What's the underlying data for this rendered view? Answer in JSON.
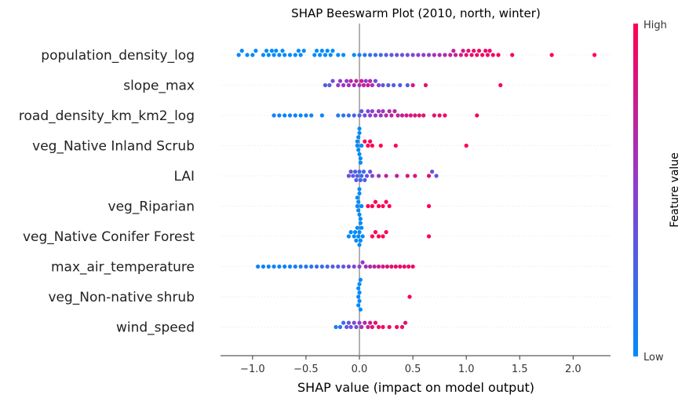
{
  "chart_data": {
    "type": "scatter",
    "subtype": "beeswarm",
    "title": "SHAP Beeswarm Plot (2010, north, winter)",
    "xlabel": "SHAP value (impact on model output)",
    "xlim": [
      -1.3,
      2.35
    ],
    "xticks": [
      -1.0,
      -0.5,
      0.0,
      0.5,
      1.0,
      1.5,
      2.0
    ],
    "xtick_labels": [
      "−1.0",
      "−0.5",
      "0.0",
      "0.5",
      "1.0",
      "1.5",
      "2.0"
    ],
    "features": [
      "population_density_log",
      "slope_max",
      "road_density_km_km2_log",
      "veg_Native Inland Scrub",
      "LAI",
      "veg_Riparian",
      "veg_Native Conifer Forest",
      "max_air_temperature",
      "veg_Non-native shrub",
      "wind_speed"
    ],
    "colorbar": {
      "label": "Feature value",
      "high_label": "High",
      "low_label": "Low",
      "low_color": "#008bfb",
      "high_color": "#ff0052"
    },
    "series": [
      {
        "feature": "population_density_log",
        "points": [
          [
            -1.13,
            0
          ],
          [
            -1.1,
            0
          ],
          [
            -1.05,
            0
          ],
          [
            -1.0,
            0
          ],
          [
            -0.97,
            0
          ],
          [
            -0.9,
            0
          ],
          [
            -0.87,
            0
          ],
          [
            -0.85,
            0
          ],
          [
            -0.82,
            0
          ],
          [
            -0.8,
            0
          ],
          [
            -0.78,
            0
          ],
          [
            -0.75,
            0
          ],
          [
            -0.72,
            0
          ],
          [
            -0.7,
            0
          ],
          [
            -0.65,
            0
          ],
          [
            -0.6,
            0
          ],
          [
            -0.57,
            0
          ],
          [
            -0.55,
            0
          ],
          [
            -0.52,
            0
          ],
          [
            -0.42,
            0
          ],
          [
            -0.4,
            0
          ],
          [
            -0.37,
            0
          ],
          [
            -0.35,
            0
          ],
          [
            -0.32,
            0
          ],
          [
            -0.3,
            0
          ],
          [
            -0.27,
            0
          ],
          [
            -0.25,
            0
          ],
          [
            -0.2,
            0
          ],
          [
            -0.15,
            0
          ],
          [
            -0.05,
            0
          ],
          [
            0.0,
            0.1
          ],
          [
            0.05,
            0.15
          ],
          [
            0.1,
            0.2
          ],
          [
            0.15,
            0.2
          ],
          [
            0.2,
            0.25
          ],
          [
            0.25,
            0.3
          ],
          [
            0.3,
            0.35
          ],
          [
            0.35,
            0.35
          ],
          [
            0.4,
            0.4
          ],
          [
            0.45,
            0.4
          ],
          [
            0.5,
            0.45
          ],
          [
            0.55,
            0.5
          ],
          [
            0.6,
            0.5
          ],
          [
            0.65,
            0.55
          ],
          [
            0.7,
            0.6
          ],
          [
            0.75,
            0.6
          ],
          [
            0.8,
            0.65
          ],
          [
            0.85,
            0.7
          ],
          [
            0.88,
            0.7
          ],
          [
            0.9,
            0.75
          ],
          [
            0.95,
            0.8
          ],
          [
            0.97,
            0.8
          ],
          [
            1.0,
            0.85
          ],
          [
            1.02,
            0.85
          ],
          [
            1.05,
            0.9
          ],
          [
            1.07,
            0.9
          ],
          [
            1.1,
            0.9
          ],
          [
            1.12,
            0.95
          ],
          [
            1.15,
            0.95
          ],
          [
            1.18,
            0.9
          ],
          [
            1.2,
            0.95
          ],
          [
            1.22,
            0.9
          ],
          [
            1.25,
            0.95
          ],
          [
            1.3,
            0.95
          ],
          [
            1.43,
            1.0
          ],
          [
            1.8,
            1.0
          ],
          [
            2.2,
            1.0
          ]
        ]
      },
      {
        "feature": "slope_max",
        "points": [
          [
            -0.32,
            0.3
          ],
          [
            -0.28,
            0.35
          ],
          [
            -0.25,
            0.4
          ],
          [
            -0.2,
            0.5
          ],
          [
            -0.18,
            0.55
          ],
          [
            -0.15,
            0.6
          ],
          [
            -0.12,
            0.5
          ],
          [
            -0.1,
            0.6
          ],
          [
            -0.08,
            0.7
          ],
          [
            -0.05,
            0.6
          ],
          [
            -0.03,
            0.7
          ],
          [
            0.0,
            0.6
          ],
          [
            0.02,
            0.8
          ],
          [
            0.04,
            0.7
          ],
          [
            0.06,
            0.5
          ],
          [
            0.08,
            0.8
          ],
          [
            0.1,
            0.7
          ],
          [
            0.12,
            0.6
          ],
          [
            0.15,
            0.4
          ],
          [
            0.18,
            0.5
          ],
          [
            0.22,
            0.35
          ],
          [
            0.27,
            0.3
          ],
          [
            0.32,
            0.3
          ],
          [
            0.38,
            0.3
          ],
          [
            0.45,
            0.3
          ],
          [
            0.5,
            0.85
          ],
          [
            0.62,
            0.9
          ],
          [
            1.32,
            0.95
          ]
        ]
      },
      {
        "feature": "road_density_km_km2_log",
        "points": [
          [
            -0.8,
            0.05
          ],
          [
            -0.75,
            0.05
          ],
          [
            -0.7,
            0.05
          ],
          [
            -0.65,
            0.05
          ],
          [
            -0.6,
            0.05
          ],
          [
            -0.55,
            0.05
          ],
          [
            -0.5,
            0.05
          ],
          [
            -0.45,
            0.05
          ],
          [
            -0.35,
            0.05
          ],
          [
            -0.2,
            0.1
          ],
          [
            -0.15,
            0.15
          ],
          [
            -0.1,
            0.2
          ],
          [
            -0.05,
            0.25
          ],
          [
            0.0,
            0.3
          ],
          [
            0.02,
            0.35
          ],
          [
            0.05,
            0.4
          ],
          [
            0.08,
            0.45
          ],
          [
            0.1,
            0.5
          ],
          [
            0.12,
            0.5
          ],
          [
            0.15,
            0.55
          ],
          [
            0.18,
            0.55
          ],
          [
            0.2,
            0.6
          ],
          [
            0.22,
            0.6
          ],
          [
            0.25,
            0.65
          ],
          [
            0.28,
            0.65
          ],
          [
            0.3,
            0.7
          ],
          [
            0.33,
            0.7
          ],
          [
            0.36,
            0.75
          ],
          [
            0.4,
            0.75
          ],
          [
            0.44,
            0.8
          ],
          [
            0.48,
            0.8
          ],
          [
            0.52,
            0.85
          ],
          [
            0.56,
            0.85
          ],
          [
            0.6,
            0.85
          ],
          [
            0.7,
            0.9
          ],
          [
            0.75,
            0.9
          ],
          [
            0.8,
            0.9
          ],
          [
            1.1,
            0.95
          ]
        ]
      },
      {
        "feature": "veg_Native Inland Scrub",
        "points": [
          [
            -0.02,
            0.0
          ],
          [
            -0.01,
            0.0
          ],
          [
            0.0,
            0.0
          ],
          [
            0.01,
            0.0
          ],
          [
            -0.02,
            0.0
          ],
          [
            0.0,
            0.0
          ],
          [
            0.01,
            0.0
          ],
          [
            -0.01,
            0.0
          ],
          [
            0.0,
            0.0
          ],
          [
            0.02,
            0.0
          ],
          [
            0.05,
            1.0
          ],
          [
            0.08,
            1.0
          ],
          [
            0.1,
            1.0
          ],
          [
            0.12,
            1.0
          ],
          [
            0.2,
            1.0
          ],
          [
            0.34,
            1.0
          ],
          [
            1.0,
            1.0
          ]
        ]
      },
      {
        "feature": "LAI",
        "points": [
          [
            -0.1,
            0.4
          ],
          [
            -0.08,
            0.35
          ],
          [
            -0.06,
            0.3
          ],
          [
            -0.04,
            0.3
          ],
          [
            -0.02,
            0.25
          ],
          [
            0.0,
            0.25
          ],
          [
            0.02,
            0.2
          ],
          [
            0.04,
            0.2
          ],
          [
            -0.03,
            0.3
          ],
          [
            0.01,
            0.25
          ],
          [
            0.05,
            0.3
          ],
          [
            0.07,
            0.35
          ],
          [
            0.1,
            0.4
          ],
          [
            0.12,
            0.45
          ],
          [
            0.18,
            0.6
          ],
          [
            0.25,
            0.7
          ],
          [
            0.35,
            0.75
          ],
          [
            0.45,
            0.8
          ],
          [
            0.52,
            0.85
          ],
          [
            0.65,
            0.9
          ],
          [
            0.68,
            0.4
          ],
          [
            0.72,
            0.3
          ]
        ]
      },
      {
        "feature": "veg_Riparian",
        "points": [
          [
            -0.02,
            0.0
          ],
          [
            -0.01,
            0.0
          ],
          [
            0.0,
            0.0
          ],
          [
            0.01,
            0.0
          ],
          [
            -0.02,
            0.0
          ],
          [
            0.0,
            0.0
          ],
          [
            0.01,
            0.0
          ],
          [
            -0.01,
            0.0
          ],
          [
            0.0,
            0.0
          ],
          [
            0.02,
            0.0
          ],
          [
            0.08,
            1.0
          ],
          [
            0.12,
            1.0
          ],
          [
            0.15,
            1.0
          ],
          [
            0.18,
            1.0
          ],
          [
            0.22,
            1.0
          ],
          [
            0.25,
            1.0
          ],
          [
            0.28,
            1.0
          ],
          [
            0.65,
            1.0
          ]
        ]
      },
      {
        "feature": "veg_Native Conifer Forest",
        "points": [
          [
            -0.1,
            0.0
          ],
          [
            -0.08,
            0.0
          ],
          [
            -0.05,
            0.0
          ],
          [
            -0.03,
            0.0
          ],
          [
            -0.01,
            0.0
          ],
          [
            0.0,
            0.0
          ],
          [
            0.01,
            0.0
          ],
          [
            -0.02,
            0.0
          ],
          [
            0.0,
            0.0
          ],
          [
            0.02,
            0.0
          ],
          [
            -0.04,
            0.0
          ],
          [
            0.03,
            0.0
          ],
          [
            0.12,
            1.0
          ],
          [
            0.15,
            1.0
          ],
          [
            0.18,
            1.0
          ],
          [
            0.22,
            1.0
          ],
          [
            0.25,
            1.0
          ],
          [
            0.65,
            1.0
          ]
        ]
      },
      {
        "feature": "max_air_temperature",
        "points": [
          [
            -0.95,
            0.05
          ],
          [
            -0.9,
            0.05
          ],
          [
            -0.85,
            0.05
          ],
          [
            -0.8,
            0.05
          ],
          [
            -0.75,
            0.05
          ],
          [
            -0.7,
            0.05
          ],
          [
            -0.65,
            0.05
          ],
          [
            -0.6,
            0.1
          ],
          [
            -0.55,
            0.1
          ],
          [
            -0.5,
            0.15
          ],
          [
            -0.45,
            0.15
          ],
          [
            -0.4,
            0.2
          ],
          [
            -0.35,
            0.2
          ],
          [
            -0.3,
            0.25
          ],
          [
            -0.25,
            0.3
          ],
          [
            -0.2,
            0.3
          ],
          [
            -0.15,
            0.35
          ],
          [
            -0.1,
            0.4
          ],
          [
            -0.05,
            0.45
          ],
          [
            0.0,
            0.5
          ],
          [
            0.03,
            0.55
          ],
          [
            0.06,
            0.6
          ],
          [
            0.1,
            0.65
          ],
          [
            0.14,
            0.7
          ],
          [
            0.18,
            0.75
          ],
          [
            0.22,
            0.8
          ],
          [
            0.26,
            0.85
          ],
          [
            0.3,
            0.85
          ],
          [
            0.34,
            0.9
          ],
          [
            0.38,
            0.9
          ],
          [
            0.42,
            0.9
          ],
          [
            0.46,
            0.9
          ],
          [
            0.5,
            0.95
          ]
        ]
      },
      {
        "feature": "veg_Non-native shrub",
        "points": [
          [
            -0.01,
            0.0
          ],
          [
            0.0,
            0.0
          ],
          [
            0.01,
            0.0
          ],
          [
            -0.01,
            0.0
          ],
          [
            0.0,
            0.0
          ],
          [
            0.01,
            0.0
          ],
          [
            0.0,
            0.0
          ],
          [
            -0.01,
            0.0
          ],
          [
            0.47,
            1.0
          ]
        ]
      },
      {
        "feature": "wind_speed",
        "points": [
          [
            -0.22,
            0.1
          ],
          [
            -0.18,
            0.15
          ],
          [
            -0.15,
            0.2
          ],
          [
            -0.12,
            0.3
          ],
          [
            -0.1,
            0.35
          ],
          [
            -0.08,
            0.4
          ],
          [
            -0.05,
            0.45
          ],
          [
            -0.03,
            0.4
          ],
          [
            0.0,
            0.5
          ],
          [
            0.02,
            0.6
          ],
          [
            0.05,
            0.7
          ],
          [
            0.08,
            0.75
          ],
          [
            0.1,
            0.8
          ],
          [
            0.12,
            0.85
          ],
          [
            0.15,
            0.9
          ],
          [
            0.18,
            0.9
          ],
          [
            0.22,
            0.95
          ],
          [
            0.28,
            0.95
          ],
          [
            0.35,
            0.95
          ],
          [
            0.4,
            0.9
          ],
          [
            0.43,
            0.85
          ]
        ]
      }
    ]
  }
}
